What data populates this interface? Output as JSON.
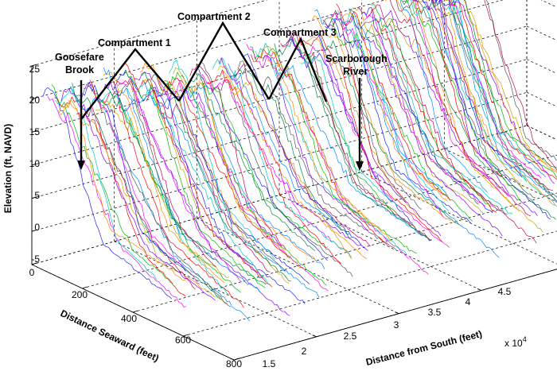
{
  "chart_data": {
    "type": "line",
    "subtype": "3d-profiles",
    "title": "",
    "xlabel": "Distance Seaward (feet)",
    "ylabel": "Distance from South (feet)",
    "zlabel": "Elevation (ft, NAVD)",
    "x_ticks": [
      "0",
      "200",
      "400",
      "600",
      "800"
    ],
    "y_ticks": [
      "1.5",
      "2",
      "2.5",
      "3",
      "3.5",
      "4",
      "4.5"
    ],
    "y_multiplier": "x 10",
    "y_multiplier_exp": "4",
    "z_ticks": [
      "25",
      "20",
      "15",
      "10",
      "5",
      "0",
      "-5"
    ],
    "xlim": [
      0,
      800
    ],
    "ylim": [
      15000,
      45000
    ],
    "zlim": [
      -5,
      25
    ],
    "grid": true,
    "annotations": [
      {
        "text": "Goosefare",
        "text2": "Brook"
      },
      {
        "text": "Compartment 1"
      },
      {
        "text": "Compartment 2"
      },
      {
        "text": "Compartment 3"
      },
      {
        "text": "Scarborough",
        "text2": "River"
      }
    ],
    "groups": [
      {
        "y_start": 15800,
        "y_end": 21800,
        "top_z": 18.5,
        "n": 34
      },
      {
        "y_start": 22000,
        "y_end": 31500,
        "top_z": 17.0,
        "n": 44
      },
      {
        "y_start": 31800,
        "y_end": 36300,
        "top_z": 19.0,
        "n": 26
      },
      {
        "y_start": 36500,
        "y_end": 40200,
        "top_z": 20.0,
        "n": 28
      }
    ]
  },
  "colors": {
    "palette": [
      "#1f1fff",
      "#ff00ff",
      "#00bb00",
      "#ff0000",
      "#00c8c8",
      "#c8a000",
      "#8a00ff",
      "#ff8800",
      "#0088ff",
      "#008844",
      "#cc0055",
      "#555555"
    ]
  }
}
